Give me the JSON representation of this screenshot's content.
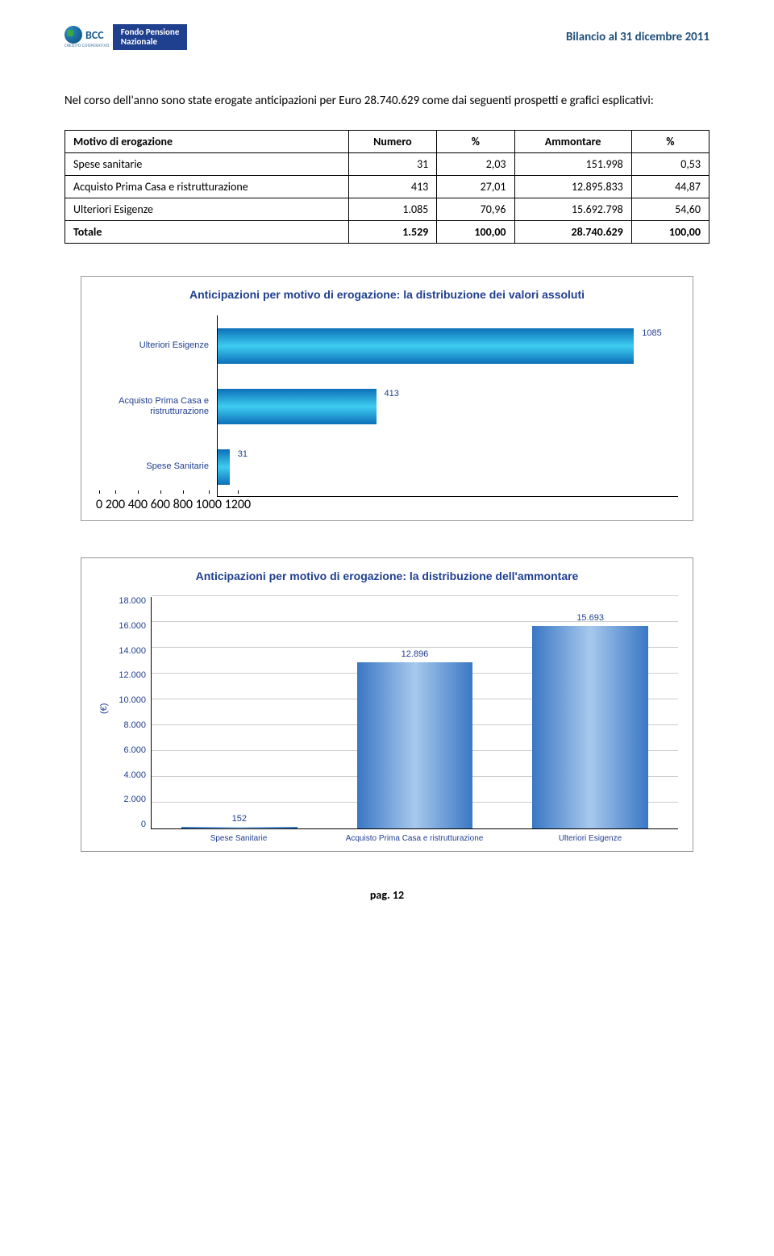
{
  "header": {
    "logo_bcc": "BCC",
    "logo_bcc_sub": "CREDITO COOPERATIVO",
    "logo_fondo_line1": "Fondo Pensione",
    "logo_fondo_line2": "Nazionale",
    "title": "Bilancio al 31 dicembre 2011"
  },
  "paragraph": "Nel corso dell'anno sono state erogate anticipazioni per Euro 28.740.629 come dai seguenti prospetti e grafici esplicativi:",
  "table": {
    "headers": [
      "Motivo di  erogazione",
      "Numero",
      "%",
      "Ammontare",
      "%"
    ],
    "rows": [
      {
        "label": "Spese sanitarie",
        "numero": "31",
        "pct_n": "2,03",
        "amm": "151.998",
        "pct_a": "0,53"
      },
      {
        "label": "Acquisto Prima Casa e ristrutturazione",
        "numero": "413",
        "pct_n": "27,01",
        "amm": "12.895.833",
        "pct_a": "44,87"
      },
      {
        "label": "Ulteriori Esigenze",
        "numero": "1.085",
        "pct_n": "70,96",
        "amm": "15.692.798",
        "pct_a": "54,60"
      }
    ],
    "total": {
      "label": "Totale",
      "numero": "1.529",
      "pct_n": "100,00",
      "amm": "28.740.629",
      "pct_a": "100,00"
    }
  },
  "chart1": {
    "title": "Anticipazioni per motivo di erogazione: la distribuzione dei  valori assoluti",
    "type": "bar_h",
    "xmax": 1200,
    "xticks": [
      "0",
      "200",
      "400",
      "600",
      "800",
      "1000",
      "1200"
    ],
    "title_color": "#1f3f8f",
    "axis_color": "#1f3f8f",
    "bar_gradient_outer": "#0d6fb8",
    "bar_gradient_inner": "#3dcdf1",
    "bars": [
      {
        "label": "Ulteriori Esigenze",
        "value": 1085,
        "value_str": "1085"
      },
      {
        "label": "Acquisto Prima Casa e ristrutturazione",
        "value": 413,
        "value_str": "413"
      },
      {
        "label": "Spese Sanitarie",
        "value": 31,
        "value_str": "31"
      }
    ]
  },
  "chart2": {
    "title": "Anticipazioni per motivo di erogazione: la distribuzione dell'ammontare",
    "type": "bar_v",
    "ymax": 18000,
    "ytick_step": 2000,
    "yticks": [
      "18.000",
      "16.000",
      "14.000",
      "12.000",
      "10.000",
      "8.000",
      "6.000",
      "4.000",
      "2.000",
      "0"
    ],
    "y_axis_label": "(€)",
    "title_color": "#1f3f8f",
    "axis_color": "#1f3f8f",
    "bar_gradient_outer": "#3a77c4",
    "bar_gradient_inner": "#a7c9ed",
    "grid_color": "#cccccc",
    "bars": [
      {
        "label": "Spese Sanitarie",
        "value": 152,
        "value_str": "152"
      },
      {
        "label": "Acquisto Prima Casa e ristrutturazione",
        "value": 12896,
        "value_str": "12.896"
      },
      {
        "label": "Ulteriori Esigenze",
        "value": 15693,
        "value_str": "15.693"
      }
    ]
  },
  "footer": "pag. 12"
}
